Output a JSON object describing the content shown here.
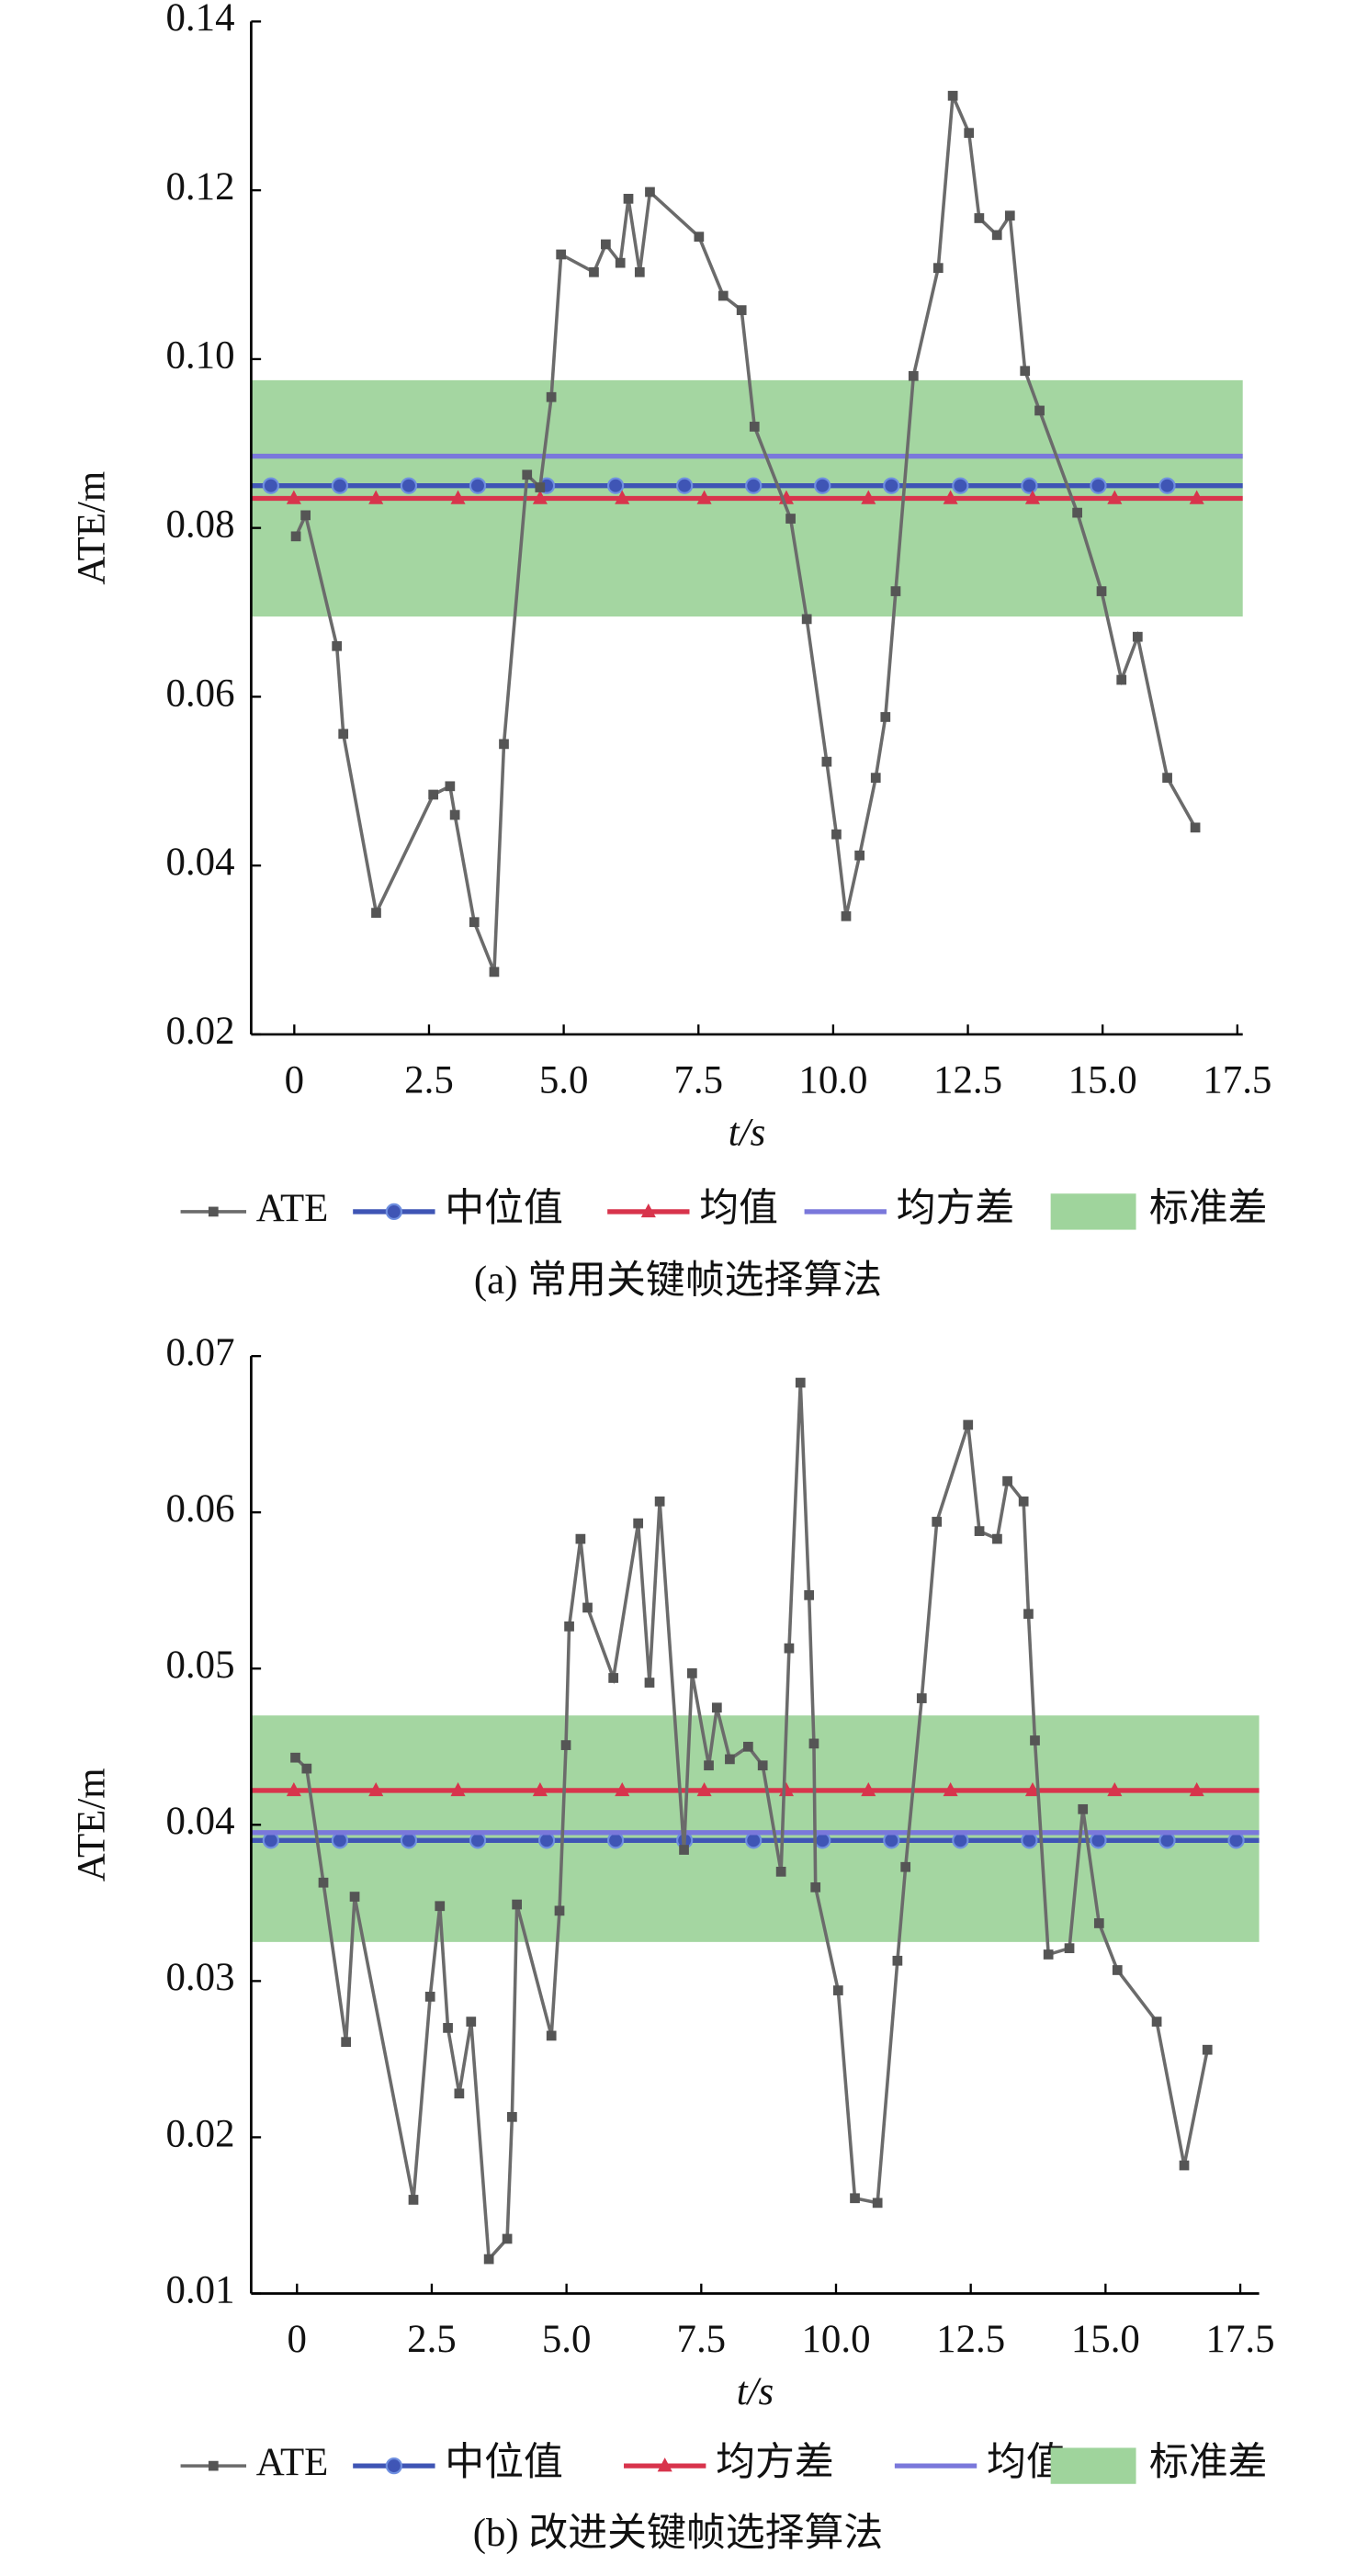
{
  "chart_data": [
    {
      "type": "line",
      "caption": "(a) 常用关键帧选择算法",
      "xlabel": "t/s",
      "ylabel": "ATE/m",
      "xlim": [
        -0.8,
        17.6
      ],
      "ylim": [
        0.02,
        0.14
      ],
      "xticks": [
        0,
        2.5,
        {
          "value": 5,
          "label": "5.0"
        },
        7.5,
        {
          "value": 10,
          "label": "10.0"
        },
        12.5,
        {
          "value": 15,
          "label": "15.0"
        },
        17.5
      ],
      "yticks": [
        0.02,
        0.04,
        0.06,
        0.08,
        {
          "value": 0.1,
          "label": "0.10"
        },
        0.12,
        0.14
      ],
      "series": [
        {
          "name": "ATE",
          "color": "#6b6b6b",
          "x": [
            0.03,
            0.21,
            0.79,
            0.91,
            1.52,
            2.58,
            2.89,
            2.98,
            3.34,
            3.71,
            3.89,
            4.32,
            4.56,
            4.77,
            4.95,
            5.56,
            5.78,
            6.05,
            6.2,
            6.41,
            6.6,
            7.51,
            7.96,
            8.3,
            8.54,
            9.21,
            9.51,
            9.88,
            10.06,
            10.24,
            10.49,
            10.79,
            10.97,
            11.16,
            11.49,
            11.95,
            12.22,
            12.52,
            12.71,
            13.04,
            13.28,
            13.56,
            13.83,
            14.53,
            14.98,
            15.35,
            15.65,
            16.2,
            16.72
          ],
          "values": [
            0.079,
            0.0815,
            0.066,
            0.0556,
            0.0344,
            0.0484,
            0.0494,
            0.046,
            0.0333,
            0.0274,
            0.0544,
            0.0863,
            0.0848,
            0.0955,
            0.1124,
            0.1103,
            0.1136,
            0.1114,
            0.119,
            0.1103,
            0.1198,
            0.1145,
            0.1075,
            0.1058,
            0.092,
            0.0811,
            0.0692,
            0.0523,
            0.0437,
            0.034,
            0.0412,
            0.0504,
            0.0576,
            0.0725,
            0.098,
            0.1108,
            0.1312,
            0.1268,
            0.1167,
            0.1147,
            0.117,
            0.0986,
            0.0939,
            0.0818,
            0.0725,
            0.062,
            0.0671,
            0.0504,
            0.0445
          ]
        }
      ],
      "reference_lines": [
        {
          "name": "中位值",
          "color": "#3f55b5",
          "marker": "circle",
          "value": 0.085
        },
        {
          "name": "均值",
          "color": "#d8344c",
          "marker": "triangle",
          "value": 0.0835
        },
        {
          "name": "均方差",
          "color": "#7a78db",
          "marker": "none",
          "value": 0.0885
        }
      ],
      "band": {
        "name": "标准差",
        "color": "#9fd49c",
        "range": [
          0.0695,
          0.0975
        ]
      }
    },
    {
      "type": "line",
      "caption": "(b) 改进关键帧选择算法",
      "xlabel": "t/s",
      "ylabel": "ATE/m",
      "xlim": [
        -0.85,
        17.85
      ],
      "ylim": [
        0.01,
        0.07
      ],
      "xticks": [
        0,
        2.5,
        {
          "value": 5,
          "label": "5.0"
        },
        7.5,
        {
          "value": 10,
          "label": "10.0"
        },
        12.5,
        {
          "value": 15,
          "label": "15.0"
        },
        17.5
      ],
      "yticks": [
        0.01,
        0.02,
        0.03,
        0.04,
        0.05,
        0.06,
        0.07
      ],
      "series": [
        {
          "name": "ATE",
          "color": "#6b6b6b",
          "x": [
            -0.03,
            0.18,
            0.49,
            0.91,
            1.07,
            2.16,
            2.47,
            2.65,
            2.8,
            3.01,
            3.23,
            3.56,
            3.9,
            3.99,
            4.08,
            4.72,
            4.87,
            4.99,
            5.05,
            5.26,
            5.39,
            5.87,
            6.33,
            6.54,
            6.73,
            7.18,
            7.33,
            7.64,
            7.79,
            8.03,
            8.37,
            8.64,
            8.98,
            9.13,
            9.34,
            9.5,
            9.59,
            9.62,
            10.04,
            10.35,
            10.77,
            11.14,
            11.29,
            11.59,
            11.87,
            12.45,
            12.66,
            12.99,
            13.18,
            13.48,
            13.57,
            13.69,
            13.94,
            14.33,
            14.58,
            14.88,
            15.22,
            15.95,
            16.46,
            16.89
          ],
          "values": [
            0.0443,
            0.0436,
            0.0363,
            0.0261,
            0.0354,
            0.016,
            0.029,
            0.0348,
            0.027,
            0.0228,
            0.0274,
            0.0122,
            0.0135,
            0.0213,
            0.0349,
            0.0265,
            0.0345,
            0.0451,
            0.0527,
            0.0583,
            0.0539,
            0.0494,
            0.0593,
            0.0491,
            0.0607,
            0.0384,
            0.0497,
            0.0438,
            0.0475,
            0.0442,
            0.045,
            0.0438,
            0.037,
            0.0513,
            0.0683,
            0.0547,
            0.0452,
            0.036,
            0.0294,
            0.0161,
            0.0158,
            0.0313,
            0.0373,
            0.0481,
            0.0594,
            0.0656,
            0.0588,
            0.0583,
            0.062,
            0.0607,
            0.0535,
            0.0454,
            0.0317,
            0.0321,
            0.041,
            0.0337,
            0.0307,
            0.0274,
            0.0182,
            0.0256
          ]
        }
      ],
      "reference_lines": [
        {
          "name": "中位值",
          "color": "#3f55b5",
          "marker": "circle",
          "value": 0.039
        },
        {
          "name": "均方差",
          "color": "#d8344c",
          "marker": "triangle",
          "value": 0.0422
        },
        {
          "name": "均值",
          "color": "#7a78db",
          "marker": "none",
          "value": 0.0395
        }
      ],
      "band": {
        "name": "标准差",
        "color": "#9fd49c",
        "range": [
          0.0325,
          0.047
        ]
      }
    }
  ]
}
